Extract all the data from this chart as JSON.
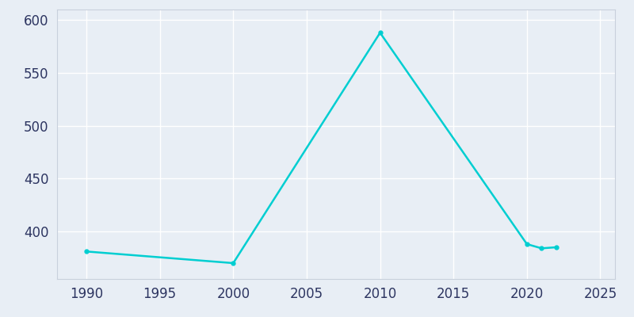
{
  "years": [
    1990,
    2000,
    2010,
    2020,
    2021,
    2022
  ],
  "population": [
    381,
    370,
    588,
    388,
    384,
    385
  ],
  "line_color": "#00CED1",
  "line_width": 1.8,
  "marker": "o",
  "marker_size": 3.5,
  "bg_color": "#E8EEF5",
  "plot_bg_color": "#E8EEF5",
  "grid_color": "#ffffff",
  "xlabel": "",
  "ylabel": "",
  "xlim": [
    1988,
    2026
  ],
  "ylim": [
    355,
    610
  ],
  "yticks": [
    400,
    450,
    500,
    550,
    600
  ],
  "xticks": [
    1990,
    1995,
    2000,
    2005,
    2010,
    2015,
    2020,
    2025
  ],
  "tick_label_color": "#2d3561",
  "tick_label_size": 12,
  "spine_color": "#c8d0dc"
}
